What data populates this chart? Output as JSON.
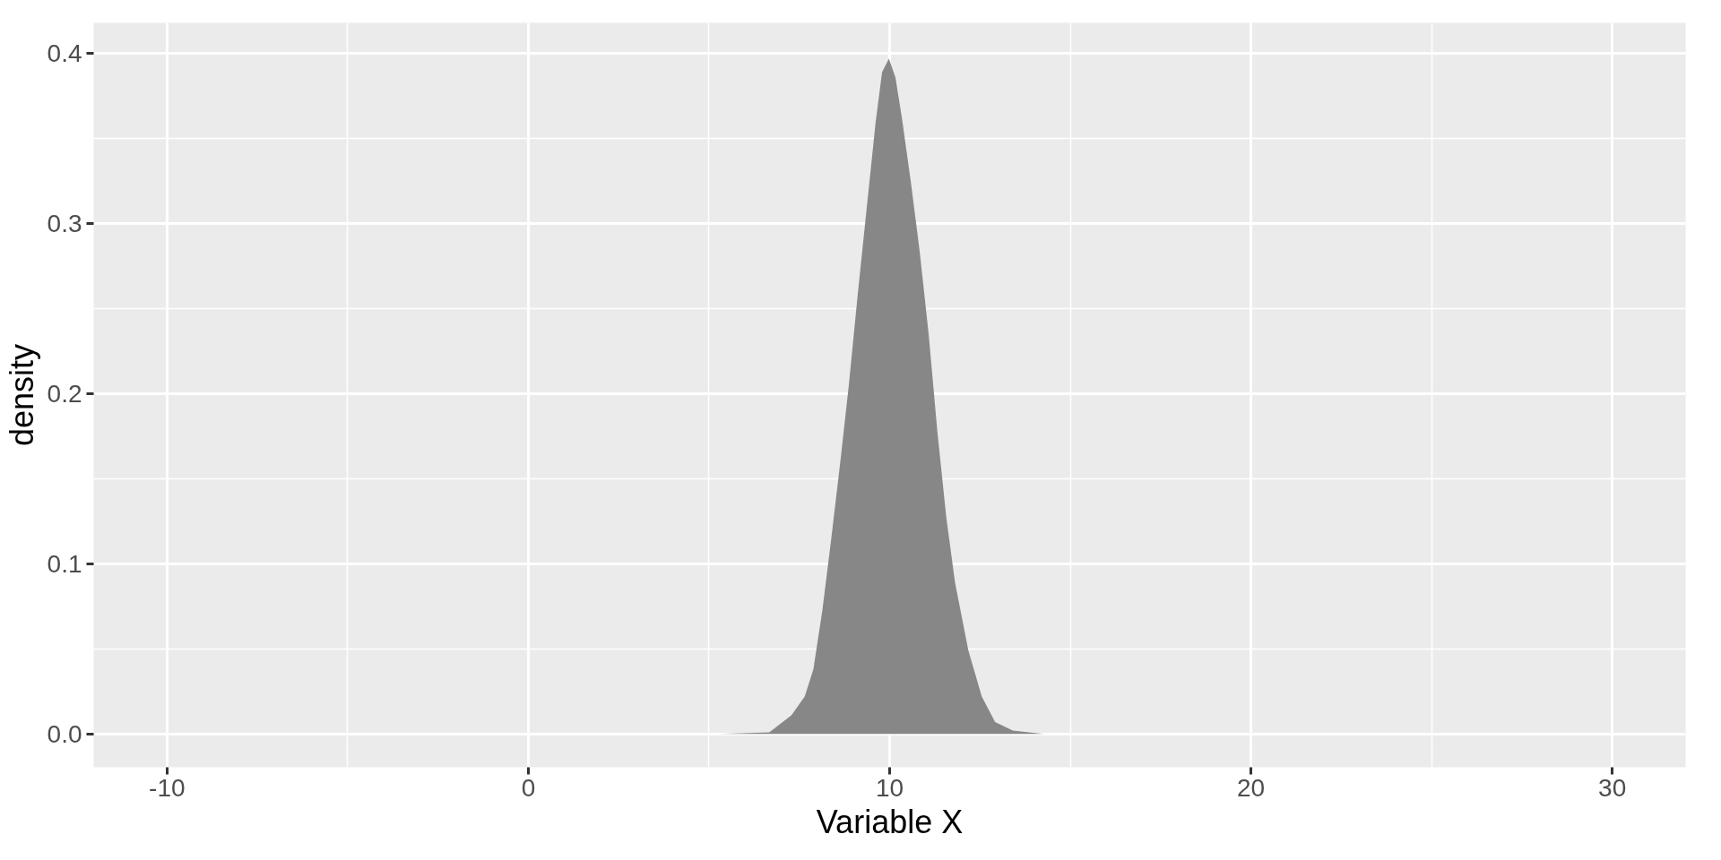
{
  "chart_data": {
    "type": "area",
    "xlabel": "Variable X",
    "ylabel": "density",
    "x": [
      5.3,
      6.67,
      7.28,
      7.65,
      7.89,
      8.14,
      8.38,
      8.63,
      8.87,
      9.12,
      9.36,
      9.61,
      9.79,
      9.98,
      10.16,
      10.34,
      10.59,
      10.83,
      11.08,
      11.32,
      11.57,
      11.81,
      12.18,
      12.55,
      12.92,
      13.41,
      14.26
    ],
    "values": [
      0,
      0.001,
      0.011,
      0.022,
      0.038,
      0.073,
      0.114,
      0.159,
      0.205,
      0.259,
      0.308,
      0.359,
      0.389,
      0.397,
      0.386,
      0.362,
      0.324,
      0.284,
      0.235,
      0.178,
      0.127,
      0.089,
      0.049,
      0.022,
      0.007,
      0.002,
      0
    ],
    "color": "#878787",
    "xlim": [
      -12.03,
      32.03
    ],
    "ylim": [
      -0.0196,
      0.418
    ],
    "xticks": [
      -10,
      0,
      10,
      20,
      30
    ],
    "yticks": [
      {
        "value": 0,
        "label": "0.0"
      },
      0.1,
      0.2,
      0.3,
      0.4
    ],
    "grid": true
  }
}
